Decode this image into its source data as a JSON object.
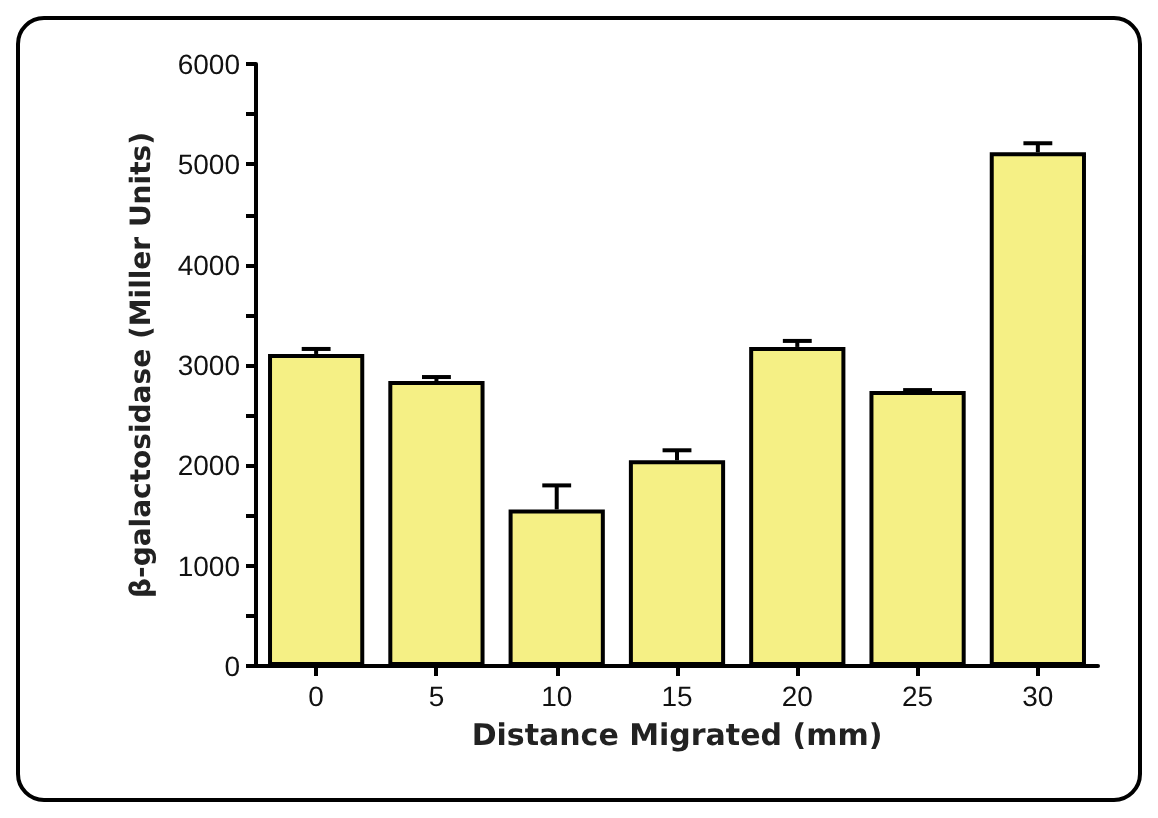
{
  "chart_data": {
    "type": "bar",
    "xlabel": "Distance Migrated (mm)",
    "ylabel": "β-galactosidase (Miller Units)",
    "categories": [
      "0",
      "5",
      "10",
      "15",
      "20",
      "25",
      "30"
    ],
    "values": [
      3110,
      2840,
      1560,
      2050,
      3180,
      2740,
      5120
    ],
    "errors": [
      [
        3110,
        3160
      ],
      [
        2840,
        2880
      ],
      [
        1560,
        1800
      ],
      [
        2050,
        2150
      ],
      [
        3180,
        3240
      ],
      [
        2740,
        2750
      ],
      [
        5120,
        5210
      ]
    ],
    "color": "#f5f085",
    "ylim": [
      0,
      6000
    ],
    "yticks": [
      0,
      {
        "value": 500,
        "label": null
      },
      1000,
      {
        "value": 1500,
        "label": null
      },
      2000,
      {
        "value": 2500,
        "label": null
      },
      3000,
      {
        "value": 3500,
        "label": null
      },
      4000,
      {
        "value": 4500,
        "label": null
      },
      5000,
      {
        "value": 5500,
        "label": null
      },
      6000
    ],
    "grid": false
  }
}
